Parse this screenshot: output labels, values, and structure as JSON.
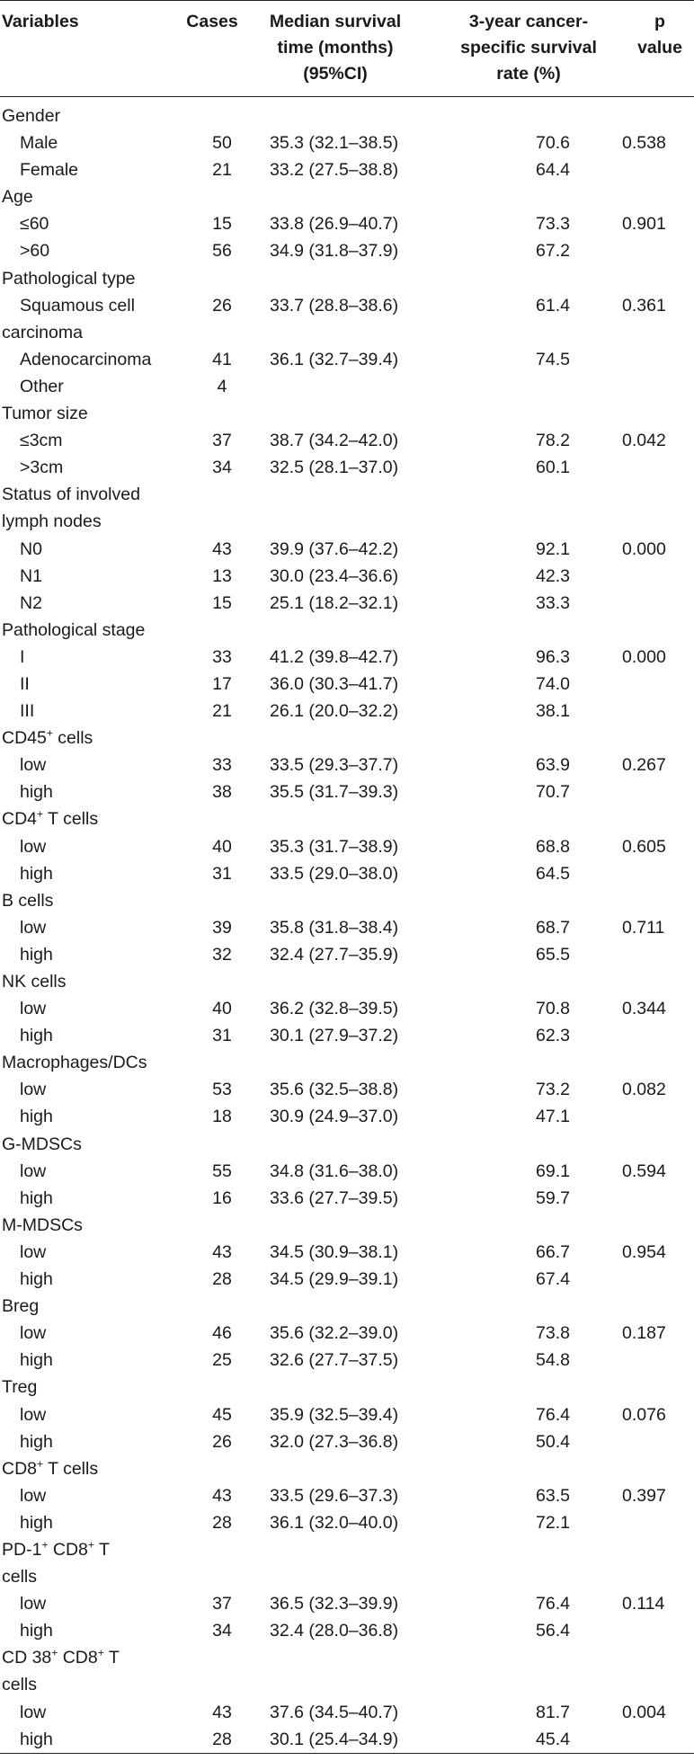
{
  "headers": {
    "variables": "Variables",
    "cases": "Cases",
    "median_l1": "Median survival",
    "median_l2": "time (months)",
    "median_l3": "(95%CI)",
    "rate_l1": "3-year cancer-",
    "rate_l2": "specific survival",
    "rate_l3": "rate (%)",
    "p_l1": "p",
    "p_l2": "value"
  },
  "rows": [
    {
      "type": "group",
      "label": "Gender"
    },
    {
      "type": "row",
      "label": "Male",
      "cases": "50",
      "median": "35.3 (32.1–38.5)",
      "rate": "70.6",
      "p": "0.538"
    },
    {
      "type": "row",
      "label": "Female",
      "cases": "21",
      "median": "33.2 (27.5–38.8)",
      "rate": "64.4",
      "p": ""
    },
    {
      "type": "group",
      "label": "Age"
    },
    {
      "type": "row",
      "label": "≤60",
      "cases": "15",
      "median": "33.8 (26.9–40.7)",
      "rate": "73.3",
      "p": "0.901"
    },
    {
      "type": "row",
      "label": ">60",
      "cases": "56",
      "median": "34.9 (31.8–37.9)",
      "rate": "67.2",
      "p": ""
    },
    {
      "type": "group",
      "label": "Pathological type"
    },
    {
      "type": "row",
      "label": "Squamous cell",
      "cases": "26",
      "median": "33.7 (28.8–38.6)",
      "rate": "61.4",
      "p": "0.361"
    },
    {
      "type": "group",
      "label": "carcinoma"
    },
    {
      "type": "row",
      "label": "Adenocarcinoma",
      "cases": "41",
      "median": "36.1 (32.7–39.4)",
      "rate": "74.5",
      "p": ""
    },
    {
      "type": "row",
      "label": "Other",
      "cases": "4",
      "median": "",
      "rate": "",
      "p": ""
    },
    {
      "type": "group",
      "label": "Tumor size"
    },
    {
      "type": "row",
      "label": "≤3cm",
      "cases": "37",
      "median": "38.7 (34.2–42.0)",
      "rate": "78.2",
      "p": "0.042"
    },
    {
      "type": "row",
      "label": ">3cm",
      "cases": "34",
      "median": "32.5 (28.1–37.0)",
      "rate": "60.1",
      "p": ""
    },
    {
      "type": "group",
      "label": "Status of involved"
    },
    {
      "type": "group",
      "label": "lymph nodes"
    },
    {
      "type": "row",
      "label": "N0",
      "cases": "43",
      "median": "39.9 (37.6–42.2)",
      "rate": "92.1",
      "p": "0.000"
    },
    {
      "type": "row",
      "label": "N1",
      "cases": "13",
      "median": "30.0 (23.4–36.6)",
      "rate": "42.3",
      "p": ""
    },
    {
      "type": "row",
      "label": "N2",
      "cases": "15",
      "median": "25.1 (18.2–32.1)",
      "rate": "33.3",
      "p": ""
    },
    {
      "type": "group",
      "label": "Pathological stage"
    },
    {
      "type": "row",
      "label": "I",
      "cases": "33",
      "median": "41.2 (39.8–42.7)",
      "rate": "96.3",
      "p": "0.000"
    },
    {
      "type": "row",
      "label": "II",
      "cases": "17",
      "median": "36.0 (30.3–41.7)",
      "rate": "74.0",
      "p": ""
    },
    {
      "type": "row",
      "label": "III",
      "cases": "21",
      "median": "26.1 (20.0–32.2)",
      "rate": "38.1",
      "p": ""
    },
    {
      "type": "group",
      "label": "CD45",
      "sup": "+",
      "post": " cells"
    },
    {
      "type": "row",
      "label": "low",
      "cases": "33",
      "median": "33.5 (29.3–37.7)",
      "rate": "63.9",
      "p": "0.267"
    },
    {
      "type": "row",
      "label": "high",
      "cases": "38",
      "median": "35.5 (31.7–39.3)",
      "rate": "70.7",
      "p": ""
    },
    {
      "type": "group",
      "label": "CD4",
      "sup": "+",
      "post": " T cells"
    },
    {
      "type": "row",
      "label": "low",
      "cases": "40",
      "median": "35.3 (31.7–38.9)",
      "rate": "68.8",
      "p": "0.605"
    },
    {
      "type": "row",
      "label": "high",
      "cases": "31",
      "median": "33.5 (29.0–38.0)",
      "rate": "64.5",
      "p": ""
    },
    {
      "type": "group",
      "label": "B cells"
    },
    {
      "type": "row",
      "label": "low",
      "cases": "39",
      "median": "35.8 (31.8–38.4)",
      "rate": "68.7",
      "p": "0.711"
    },
    {
      "type": "row",
      "label": "high",
      "cases": "32",
      "median": "32.4 (27.7–35.9)",
      "rate": "65.5",
      "p": ""
    },
    {
      "type": "group",
      "label": "NK cells"
    },
    {
      "type": "row",
      "label": "low",
      "cases": "40",
      "median": "36.2 (32.8–39.5)",
      "rate": "70.8",
      "p": "0.344"
    },
    {
      "type": "row",
      "label": "high",
      "cases": "31",
      "median": "30.1 (27.9–37.2)",
      "rate": "62.3",
      "p": ""
    },
    {
      "type": "group",
      "label": "Macrophages/DCs"
    },
    {
      "type": "row",
      "label": "low",
      "cases": "53",
      "median": "35.6 (32.5–38.8)",
      "rate": "73.2",
      "p": "0.082"
    },
    {
      "type": "row",
      "label": "high",
      "cases": "18",
      "median": "30.9 (24.9–37.0)",
      "rate": "47.1",
      "p": ""
    },
    {
      "type": "group",
      "label": "G-MDSCs"
    },
    {
      "type": "row",
      "label": "low",
      "cases": "55",
      "median": "34.8 (31.6–38.0)",
      "rate": "69.1",
      "p": "0.594"
    },
    {
      "type": "row",
      "label": "high",
      "cases": "16",
      "median": "33.6 (27.7–39.5)",
      "rate": "59.7",
      "p": ""
    },
    {
      "type": "group",
      "label": "M-MDSCs"
    },
    {
      "type": "row",
      "label": "low",
      "cases": "43",
      "median": "34.5 (30.9–38.1)",
      "rate": "66.7",
      "p": "0.954"
    },
    {
      "type": "row",
      "label": "high",
      "cases": "28",
      "median": "34.5 (29.9–39.1)",
      "rate": "67.4",
      "p": ""
    },
    {
      "type": "group",
      "label": "Breg"
    },
    {
      "type": "row",
      "label": "low",
      "cases": "46",
      "median": "35.6 (32.2–39.0)",
      "rate": "73.8",
      "p": "0.187"
    },
    {
      "type": "row",
      "label": "high",
      "cases": "25",
      "median": "32.6 (27.7–37.5)",
      "rate": "54.8",
      "p": ""
    },
    {
      "type": "group",
      "label": "Treg"
    },
    {
      "type": "row",
      "label": "low",
      "cases": "45",
      "median": "35.9 (32.5–39.4)",
      "rate": "76.4",
      "p": "0.076"
    },
    {
      "type": "row",
      "label": "high",
      "cases": "26",
      "median": "32.0 (27.3–36.8)",
      "rate": "50.4",
      "p": ""
    },
    {
      "type": "group",
      "label": "CD8",
      "sup": "+",
      "post": " T cells"
    },
    {
      "type": "row",
      "label": "low",
      "cases": "43",
      "median": "33.5 (29.6–37.3)",
      "rate": "63.5",
      "p": "0.397"
    },
    {
      "type": "row",
      "label": "high",
      "cases": "28",
      "median": "36.1 (32.0–40.0)",
      "rate": "72.1",
      "p": ""
    },
    {
      "type": "group",
      "label": "PD-1",
      "sup": "+",
      "post": " CD8",
      "sup2": "+",
      "post2": " T"
    },
    {
      "type": "group",
      "label": "cells"
    },
    {
      "type": "row",
      "label": "low",
      "cases": "37",
      "median": "36.5 (32.3–39.9)",
      "rate": "76.4",
      "p": "0.114"
    },
    {
      "type": "row",
      "label": "high",
      "cases": "34",
      "median": "32.4 (28.0–36.8)",
      "rate": "56.4",
      "p": ""
    },
    {
      "type": "group",
      "label": "CD 38",
      "sup": "+",
      "post": " CD8",
      "sup2": "+",
      "post2": " T"
    },
    {
      "type": "group",
      "label": "cells"
    },
    {
      "type": "row",
      "label": "low",
      "cases": "43",
      "median": "37.6 (34.5–40.7)",
      "rate": "81.7",
      "p": "0.004"
    },
    {
      "type": "row",
      "label": "high",
      "cases": "28",
      "median": "30.1 (25.4–34.9)",
      "rate": "45.4",
      "p": ""
    }
  ]
}
